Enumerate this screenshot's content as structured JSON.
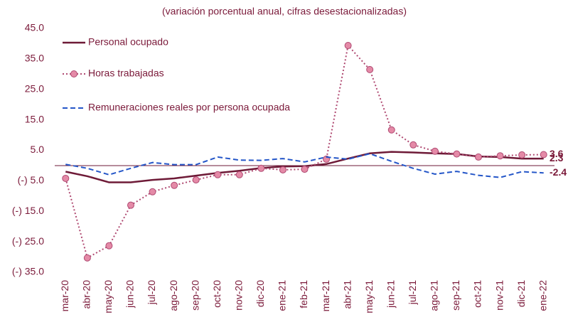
{
  "chart_data": {
    "type": "line",
    "title": "(variación porcentual anual, cifras desestacionalizadas)",
    "categories": [
      "mar-20",
      "abr-20",
      "may-20",
      "jun-20",
      "jul-20",
      "ago-20",
      "sep-20",
      "oct-20",
      "nov-20",
      "dic-20",
      "ene-21",
      "feb-21",
      "mar-21",
      "abr-21",
      "may-21",
      "jun-21",
      "jul-21",
      "ago-21",
      "sep-21",
      "oct-21",
      "nov-21",
      "dic-21",
      "ene-22"
    ],
    "series": [
      {
        "name": "Personal ocupado",
        "color": "#6e1a37",
        "line_style": "solid",
        "values": [
          -2.0,
          -3.5,
          -5.5,
          -5.5,
          -4.7,
          -4.2,
          -3.3,
          -2.4,
          -1.7,
          -0.8,
          -0.3,
          -0.2,
          0.5,
          2.3,
          4.0,
          4.5,
          4.3,
          4.0,
          3.8,
          3.0,
          2.8,
          2.3,
          2.3
        ]
      },
      {
        "name": "Horas trabajadas",
        "color": "#b04a72",
        "line_style": "dotted",
        "marker": "circle",
        "marker_color": "#e48aa7",
        "values": [
          -4.2,
          -30.3,
          -26.3,
          -13.0,
          -8.6,
          -6.5,
          -4.7,
          -3.0,
          -3.0,
          -0.9,
          -1.4,
          -1.2,
          2.1,
          39.4,
          31.5,
          11.7,
          6.8,
          4.7,
          3.8,
          2.8,
          3.2,
          3.5,
          3.6
        ]
      },
      {
        "name": "Remuneraciones reales por persona ocupada",
        "color": "#2456c8",
        "line_style": "dashed",
        "values": [
          0.4,
          -0.9,
          -3.0,
          -0.9,
          1.0,
          0.3,
          0.3,
          2.8,
          1.8,
          1.7,
          2.3,
          1.2,
          2.8,
          2.1,
          3.9,
          1.4,
          -0.9,
          -2.8,
          -1.9,
          -3.2,
          -3.9,
          -2.0,
          -2.4
        ]
      }
    ],
    "ylim": [
      -35,
      45
    ],
    "yticks": [
      {
        "value": 45,
        "label": "45.0"
      },
      {
        "value": 35,
        "label": "35.0"
      },
      {
        "value": 25,
        "label": "25.0"
      },
      {
        "value": 15,
        "label": "15.0"
      },
      {
        "value": 5,
        "label": "5.0"
      },
      {
        "value": -5,
        "label": "(-) 5.0"
      },
      {
        "value": -15,
        "label": "(-) 15.0"
      },
      {
        "value": -25,
        "label": "(-) 25.0"
      },
      {
        "value": -35,
        "label": "(-) 35.0"
      }
    ],
    "legend": "top-left"
  }
}
